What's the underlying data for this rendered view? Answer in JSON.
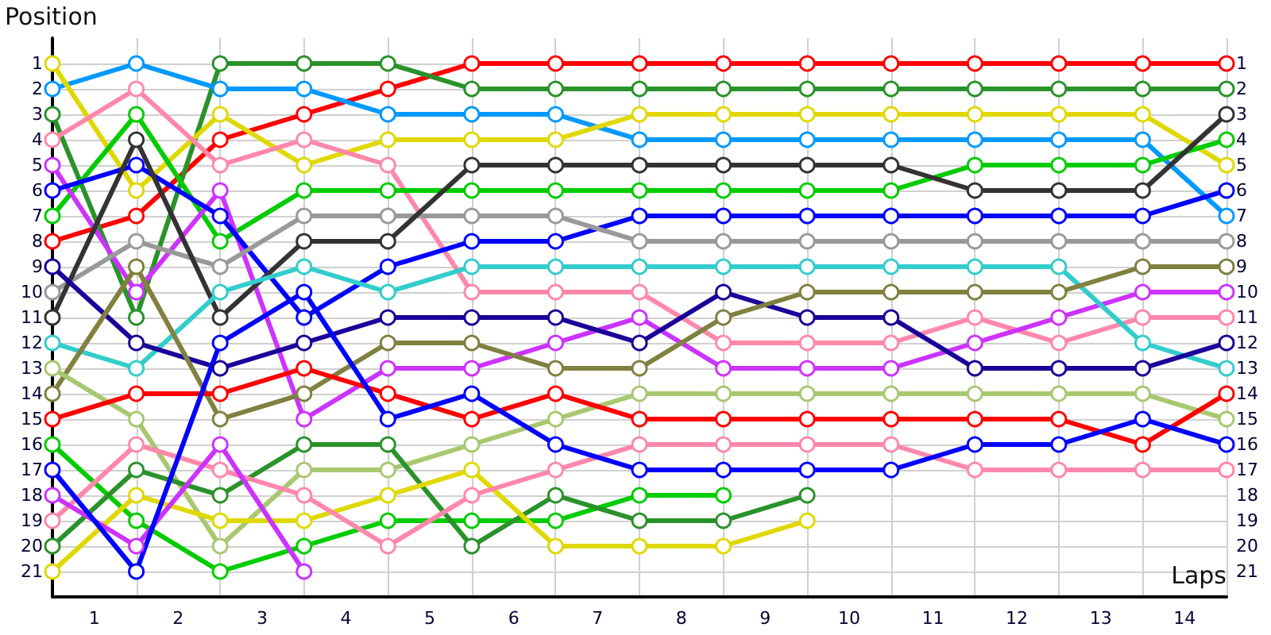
{
  "chart_data": {
    "type": "line",
    "xlabel": "Laps",
    "ylabel": "Position",
    "x": [
      0,
      1,
      2,
      3,
      4,
      5,
      6,
      7,
      8,
      9,
      10,
      11,
      12,
      13,
      14
    ],
    "xlim": [
      0,
      14
    ],
    "xticks": [
      {
        "value": 0,
        "label": null
      },
      {
        "value": 0.5,
        "label": "1"
      },
      {
        "value": 1,
        "label": null
      },
      {
        "value": 1.5,
        "label": "2"
      },
      {
        "value": 2,
        "label": null
      },
      {
        "value": 2.5,
        "label": "3"
      },
      {
        "value": 3,
        "label": null
      },
      {
        "value": 3.5,
        "label": "4"
      },
      {
        "value": 4,
        "label": null
      },
      {
        "value": 4.5,
        "label": "5"
      },
      {
        "value": 5,
        "label": null
      },
      {
        "value": 5.5,
        "label": "6"
      },
      {
        "value": 6,
        "label": null
      },
      {
        "value": 6.5,
        "label": "7"
      },
      {
        "value": 7,
        "label": null
      },
      {
        "value": 7.5,
        "label": "8"
      },
      {
        "value": 8,
        "label": null
      },
      {
        "value": 8.5,
        "label": "9"
      },
      {
        "value": 9,
        "label": null
      },
      {
        "value": 9.5,
        "label": "10"
      },
      {
        "value": 10,
        "label": null
      },
      {
        "value": 10.5,
        "label": "11"
      },
      {
        "value": 11,
        "label": null
      },
      {
        "value": 11.5,
        "label": "12"
      },
      {
        "value": 12,
        "label": null
      },
      {
        "value": 12.5,
        "label": "13"
      },
      {
        "value": 13,
        "label": null
      },
      {
        "value": 13.5,
        "label": "14"
      },
      {
        "value": 14,
        "label": null
      }
    ],
    "ylim": [
      22,
      0
    ],
    "yticks": [
      1,
      2,
      3,
      4,
      5,
      6,
      7,
      8,
      9,
      10,
      11,
      12,
      13,
      14,
      15,
      16,
      17,
      18,
      19,
      20,
      21
    ],
    "y2lim": [
      22,
      0
    ],
    "y2ticks": [
      1,
      2,
      3,
      4,
      5,
      6,
      7,
      8,
      9,
      10,
      11,
      12,
      13,
      14,
      15,
      16,
      17,
      18,
      19,
      20,
      21
    ],
    "grid": true,
    "marker": "circle",
    "line_style": "solid",
    "series": [
      {
        "color": "#ff0000",
        "values": [
          8,
          7,
          4,
          3,
          2,
          1,
          1,
          1,
          1,
          1,
          1,
          1,
          1,
          1,
          1
        ]
      },
      {
        "color": "#2a922a",
        "values": [
          3,
          11,
          1,
          1,
          1,
          2,
          2,
          2,
          2,
          2,
          2,
          2,
          2,
          2,
          2
        ]
      },
      {
        "color": "#0099ff",
        "values": [
          2,
          1,
          2,
          2,
          3,
          3,
          3,
          4,
          4,
          4,
          4,
          4,
          4,
          4,
          7
        ]
      },
      {
        "color": "#e0d800",
        "values": [
          1,
          6,
          3,
          5,
          4,
          4,
          4,
          3,
          3,
          3,
          3,
          3,
          3,
          3,
          5
        ]
      },
      {
        "color": "#ff88aa",
        "values": [
          4,
          2,
          5,
          4,
          5,
          10,
          10,
          10,
          12,
          12,
          12,
          11,
          12,
          11,
          11
        ]
      },
      {
        "color": "#00cc00",
        "values": [
          7,
          3,
          8,
          6,
          6,
          6,
          6,
          6,
          6,
          6,
          6,
          5,
          5,
          5,
          4
        ]
      },
      {
        "color": "#cc33ff",
        "values": [
          5,
          10,
          6,
          15,
          13,
          13,
          12,
          11,
          13,
          13,
          13,
          12,
          11,
          10,
          10
        ]
      },
      {
        "color": "#0000ff",
        "values": [
          6,
          5,
          7,
          11,
          9,
          8,
          8,
          7,
          7,
          7,
          7,
          7,
          7,
          7,
          6
        ]
      },
      {
        "color": "#999999",
        "values": [
          10,
          8,
          9,
          7,
          7,
          7,
          7,
          8,
          8,
          8,
          8,
          8,
          8,
          8,
          8
        ]
      },
      {
        "color": "#333333",
        "values": [
          11,
          4,
          11,
          8,
          8,
          5,
          5,
          5,
          5,
          5,
          5,
          6,
          6,
          6,
          3
        ]
      },
      {
        "color": "#33cccc",
        "values": [
          12,
          13,
          10,
          9,
          10,
          9,
          9,
          9,
          9,
          9,
          9,
          9,
          9,
          12,
          13
        ]
      },
      {
        "color": "#1a0099",
        "values": [
          9,
          12,
          13,
          12,
          11,
          11,
          11,
          12,
          10,
          11,
          11,
          13,
          13,
          13,
          12
        ]
      },
      {
        "color": "#808040",
        "values": [
          14,
          9,
          15,
          14,
          12,
          12,
          13,
          13,
          11,
          10,
          10,
          10,
          10,
          9,
          9
        ]
      },
      {
        "color": "#a8c870",
        "values": [
          13,
          15,
          20,
          17,
          17,
          16,
          15,
          14,
          14,
          14,
          14,
          14,
          14,
          14,
          15
        ]
      },
      {
        "color": "#ff0000",
        "values": [
          15,
          14,
          14,
          13,
          14,
          15,
          14,
          15,
          15,
          15,
          15,
          15,
          15,
          16,
          14
        ]
      },
      {
        "color": "#00cc00",
        "values": [
          16,
          19,
          21,
          20,
          19,
          19,
          19,
          18,
          18,
          null,
          null,
          null,
          null,
          null,
          null
        ]
      },
      {
        "color": "#2a922a",
        "values": [
          20,
          17,
          18,
          16,
          16,
          20,
          18,
          19,
          19,
          18,
          null,
          null,
          null,
          null,
          null
        ]
      },
      {
        "color": "#e0d800",
        "values": [
          21,
          18,
          19,
          19,
          18,
          17,
          20,
          20,
          20,
          19,
          null,
          null,
          null,
          null,
          null
        ]
      },
      {
        "color": "#ff88aa",
        "values": [
          19,
          16,
          17,
          18,
          20,
          18,
          17,
          16,
          16,
          16,
          16,
          17,
          17,
          17,
          17
        ]
      },
      {
        "color": "#cc33ff",
        "values": [
          18,
          20,
          16,
          21,
          null,
          null,
          null,
          null,
          null,
          null,
          null,
          null,
          null,
          null,
          null
        ]
      },
      {
        "color": "#0000ff",
        "values": [
          17,
          21,
          12,
          10,
          15,
          14,
          16,
          17,
          17,
          17,
          17,
          16,
          16,
          15,
          16
        ]
      }
    ]
  }
}
